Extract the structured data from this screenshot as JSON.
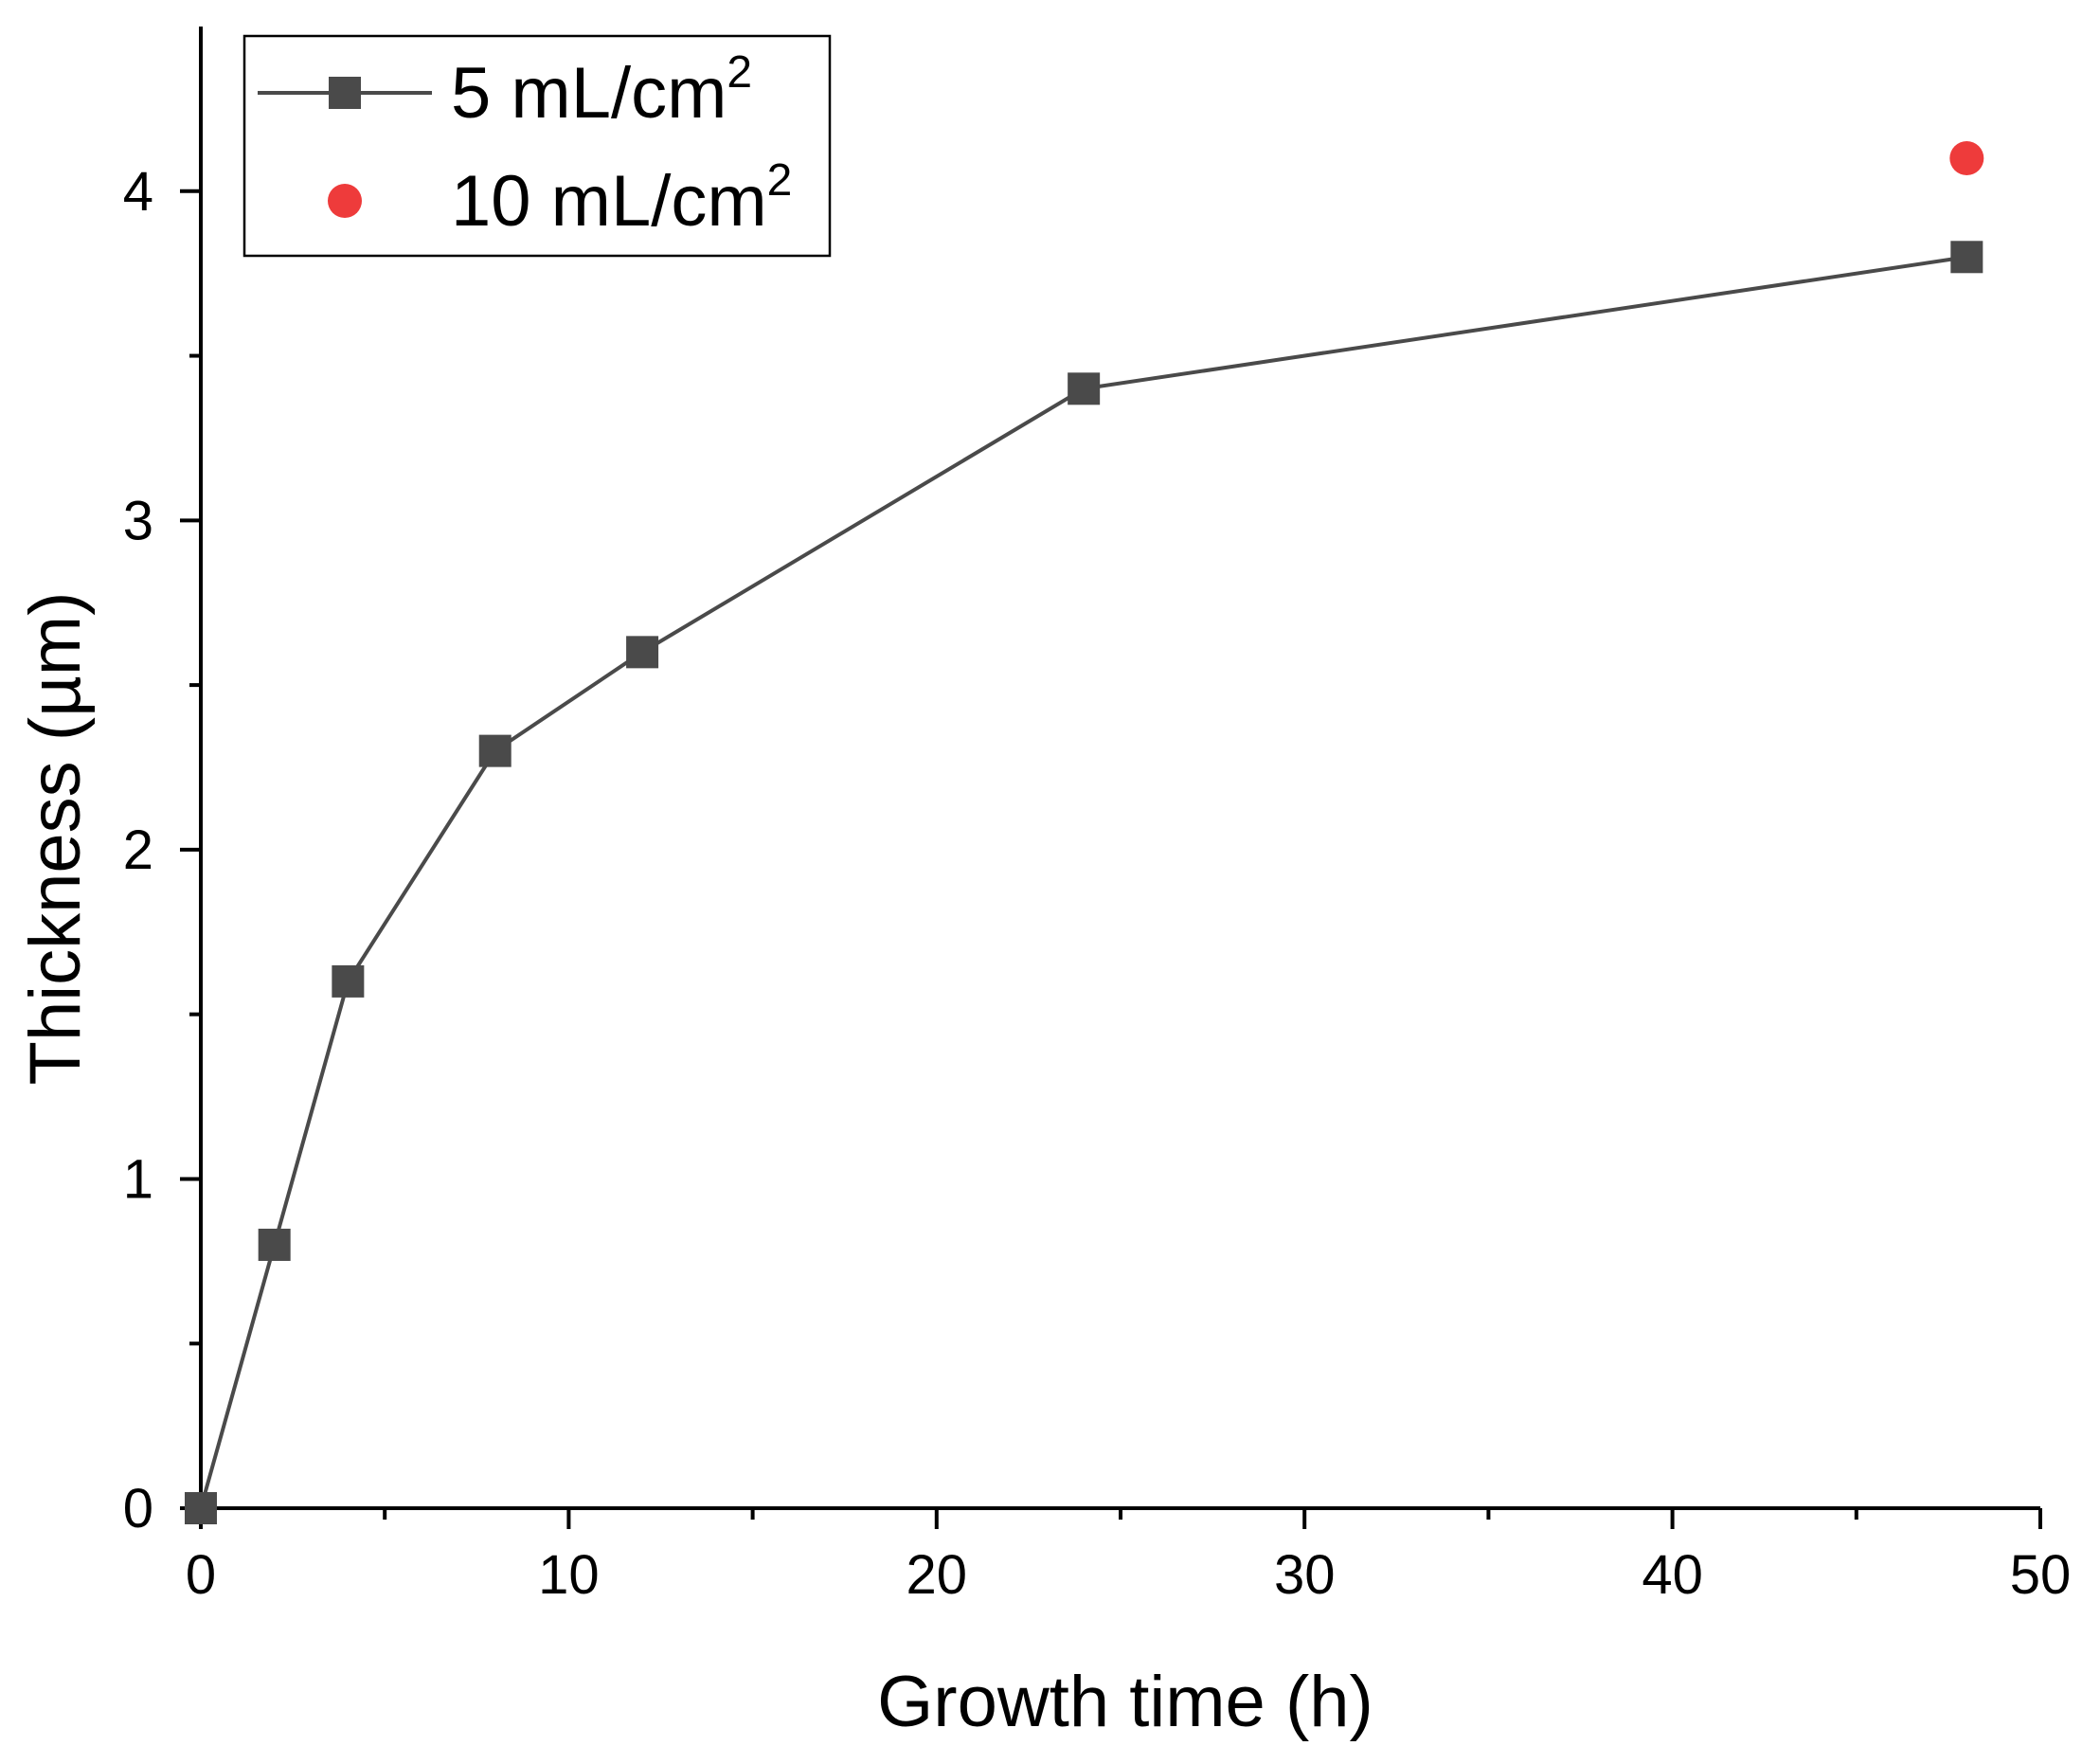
{
  "chart_data": {
    "type": "scatter",
    "title": "",
    "xlabel": "Growth time (h)",
    "ylabel": "Thickness (µm)",
    "xlim": [
      0,
      50
    ],
    "ylim": [
      0,
      4.5
    ],
    "x_major_ticks": [
      0,
      10,
      20,
      30,
      40,
      50
    ],
    "x_minor_ticks": [
      5,
      15,
      25,
      35,
      45
    ],
    "y_major_ticks": [
      0,
      1,
      2,
      3,
      4
    ],
    "y_minor_ticks": [
      0.5,
      1.5,
      2.5,
      3.5
    ],
    "x_tick_labels": [
      "0",
      "10",
      "20",
      "30",
      "40",
      "50"
    ],
    "y_tick_labels": [
      "0",
      "1",
      "2",
      "3",
      "4"
    ],
    "grid": false,
    "legend_position": "top-left",
    "series": [
      {
        "name": "5 mL/cm2",
        "label_base": "5 mL/cm",
        "label_sup": "2",
        "marker": "square",
        "line": true,
        "color": "#4a4a4a",
        "x": [
          0,
          2,
          4,
          8,
          12,
          24,
          48
        ],
        "y": [
          0,
          0.8,
          1.6,
          2.3,
          2.6,
          3.4,
          3.8
        ]
      },
      {
        "name": "10 mL/cm2",
        "label_base": "10 mL/cm",
        "label_sup": "2",
        "marker": "circle",
        "line": false,
        "color": "#ee3b3b",
        "x": [
          48
        ],
        "y": [
          4.1
        ]
      }
    ]
  }
}
